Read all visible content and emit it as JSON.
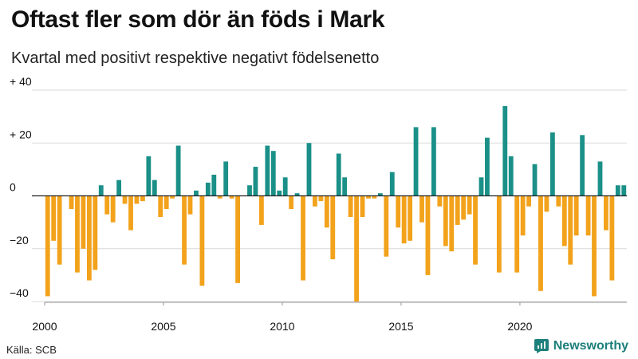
{
  "chart_data": {
    "type": "bar",
    "title": "Oftast fler som dör än föds i Mark",
    "subtitle": "Kvartal med positivt respektive negativt födelsenetto",
    "xlabel": "",
    "ylabel": "",
    "ylim": [
      -40,
      40
    ],
    "y_ticks": [
      {
        "value": 40,
        "label": "+ 40"
      },
      {
        "value": 20,
        "label": "+ 20"
      },
      {
        "value": 0,
        "label": "0"
      },
      {
        "value": -20,
        "label": "−20"
      },
      {
        "value": -40,
        "label": "−40"
      }
    ],
    "x_ticks": [
      {
        "index": 0,
        "label": "2000"
      },
      {
        "index": 20,
        "label": "2005"
      },
      {
        "index": 40,
        "label": "2010"
      },
      {
        "index": 60,
        "label": "2015"
      },
      {
        "index": 80,
        "label": "2020"
      }
    ],
    "start_year": 2000,
    "positive_color": "#1a9088",
    "negative_color": "#f2a21b",
    "values": [
      -38,
      -17,
      -26,
      0,
      -5,
      -29,
      -20,
      -32,
      -28,
      4,
      -7,
      -10,
      6,
      -3,
      -13,
      -3,
      -2,
      15,
      6,
      -8,
      -5,
      -1,
      19,
      -26,
      -7,
      2,
      -34,
      5,
      8,
      -1,
      13,
      -1,
      -33,
      0,
      4,
      11,
      -11,
      19,
      17,
      2,
      7,
      -5,
      1,
      -32,
      20,
      -4,
      -2,
      -12,
      -24,
      16,
      7,
      -8,
      -40,
      -8,
      -1,
      -1,
      1,
      -23,
      9,
      -12,
      -18,
      -17,
      26,
      -10,
      -30,
      26,
      -4,
      -19,
      -21,
      -11,
      -9,
      -7,
      -26,
      7,
      22,
      0,
      -29,
      34,
      15,
      -29,
      -15,
      -4,
      12,
      -36,
      -6,
      24,
      -4,
      -19,
      -26,
      -15,
      23,
      -15,
      -38,
      13,
      -13,
      -32,
      4,
      4
    ]
  },
  "footer": {
    "source": "Källa: SCB",
    "brand": "Newsworthy",
    "brand_color": "#1b7f7a"
  }
}
